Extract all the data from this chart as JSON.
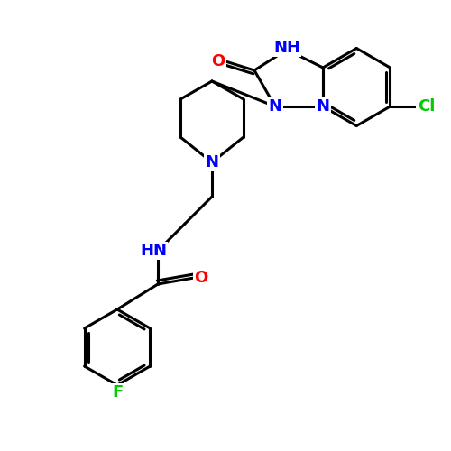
{
  "background_color": "#ffffff",
  "bond_color": "#000000",
  "bond_width": 2.2,
  "atom_colors": {
    "N": "#0000ff",
    "O": "#ff0000",
    "F": "#00cc00",
    "Cl": "#00cc00",
    "C": "#000000",
    "H": "#0000ff"
  },
  "font_size": 13,
  "font_size_small": 12
}
